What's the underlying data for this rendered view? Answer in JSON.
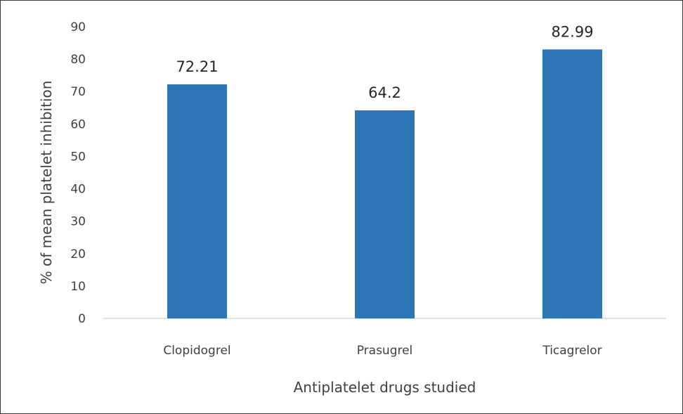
{
  "chart_data": {
    "type": "bar",
    "title": "",
    "xlabel": "Antiplatelet drugs studied",
    "ylabel": "% of mean platelet inhibition",
    "categories": [
      "Clopidogrel",
      "Prasugrel",
      "Ticagrelor"
    ],
    "values": [
      72.21,
      64.2,
      82.99
    ],
    "data_labels": [
      "72.21",
      "64.2",
      "82.99"
    ],
    "ylim": [
      0,
      90
    ],
    "yticks": [
      0,
      10,
      20,
      30,
      40,
      50,
      60,
      70,
      80,
      90
    ],
    "grid": false,
    "legend": "none",
    "colors": {
      "bar": "#2e75b6",
      "axis": "#d9d9d9",
      "text": "#404040",
      "frame": "#3a3a3a"
    }
  }
}
